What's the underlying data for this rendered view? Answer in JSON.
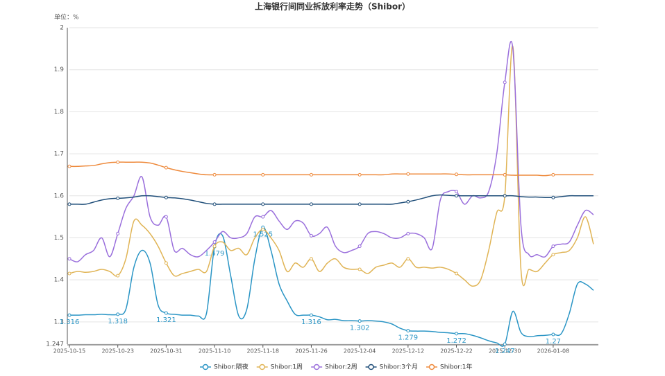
{
  "chart_data": {
    "type": "line",
    "title": "上海银行间同业拆放利率走势（Shibor）",
    "y_unit_label": "单位：%",
    "categories": [
      "2025-10-15",
      null,
      null,
      null,
      null,
      null,
      "2025-10-23",
      null,
      null,
      null,
      null,
      null,
      "2025-10-31",
      null,
      null,
      null,
      null,
      null,
      "2025-11-10",
      null,
      null,
      null,
      null,
      null,
      "2025-11-18",
      null,
      null,
      null,
      null,
      null,
      "2025-11-26",
      null,
      null,
      null,
      null,
      null,
      "2025-12-04",
      null,
      null,
      null,
      null,
      null,
      "2025-12-12",
      null,
      null,
      null,
      null,
      null,
      "2025-12-22",
      null,
      null,
      null,
      null,
      null,
      "2025-12-30",
      null,
      null,
      null,
      null,
      null,
      "2026-01-08",
      null,
      null,
      null,
      null,
      null
    ],
    "ylim": [
      1.247,
      2
    ],
    "yticks": [
      1.247,
      1.3,
      1.4,
      1.5,
      1.6,
      1.7,
      1.8,
      1.9,
      2
    ],
    "grid": true,
    "legend_position": "bottom",
    "series": [
      {
        "name": "Shibor:隔夜",
        "color": "#2a95c5",
        "values": [
          1.316,
          1.316,
          1.317,
          1.317,
          1.318,
          1.317,
          1.318,
          1.33,
          1.43,
          1.47,
          1.44,
          1.34,
          1.321,
          1.318,
          1.316,
          1.316,
          1.314,
          1.32,
          1.479,
          1.505,
          1.41,
          1.314,
          1.33,
          1.45,
          1.525,
          1.47,
          1.39,
          1.35,
          1.318,
          1.316,
          1.316,
          1.312,
          1.305,
          1.306,
          1.303,
          1.303,
          1.302,
          1.303,
          1.302,
          1.3,
          1.295,
          1.285,
          1.279,
          1.278,
          1.278,
          1.277,
          1.275,
          1.274,
          1.272,
          1.272,
          1.268,
          1.262,
          1.255,
          1.25,
          1.247,
          1.325,
          1.275,
          1.265,
          1.267,
          1.268,
          1.27,
          1.272,
          1.32,
          1.39,
          1.39,
          1.375
        ]
      },
      {
        "name": "Shibor:1周",
        "color": "#e0b455",
        "values": [
          1.415,
          1.42,
          1.418,
          1.42,
          1.425,
          1.42,
          1.41,
          1.45,
          1.54,
          1.53,
          1.51,
          1.48,
          1.44,
          1.41,
          1.415,
          1.42,
          1.425,
          1.42,
          1.48,
          1.49,
          1.47,
          1.475,
          1.46,
          1.5,
          1.52,
          1.5,
          1.47,
          1.42,
          1.44,
          1.43,
          1.45,
          1.42,
          1.44,
          1.45,
          1.43,
          1.425,
          1.425,
          1.415,
          1.43,
          1.435,
          1.44,
          1.43,
          1.45,
          1.43,
          1.43,
          1.428,
          1.43,
          1.425,
          1.415,
          1.4,
          1.385,
          1.4,
          1.47,
          1.56,
          1.6,
          1.955,
          1.425,
          1.425,
          1.42,
          1.44,
          1.46,
          1.465,
          1.47,
          1.5,
          1.55,
          1.485
        ]
      },
      {
        "name": "Shibor:2周",
        "color": "#9a6fdc",
        "values": [
          1.45,
          1.443,
          1.46,
          1.47,
          1.5,
          1.455,
          1.51,
          1.57,
          1.6,
          1.645,
          1.55,
          1.53,
          1.55,
          1.47,
          1.475,
          1.46,
          1.455,
          1.47,
          1.49,
          1.515,
          1.5,
          1.5,
          1.51,
          1.55,
          1.55,
          1.565,
          1.54,
          1.52,
          1.54,
          1.535,
          1.505,
          1.51,
          1.525,
          1.48,
          1.465,
          1.47,
          1.48,
          1.51,
          1.515,
          1.51,
          1.5,
          1.5,
          1.51,
          1.51,
          1.5,
          1.475,
          1.59,
          1.61,
          1.61,
          1.58,
          1.6,
          1.595,
          1.61,
          1.7,
          1.87,
          1.95,
          1.53,
          1.46,
          1.46,
          1.455,
          1.48,
          1.485,
          1.49,
          1.53,
          1.565,
          1.555
        ]
      },
      {
        "name": "Shibor:3个月",
        "color": "#1f4e79",
        "values": [
          1.58,
          1.58,
          1.58,
          1.585,
          1.59,
          1.593,
          1.594,
          1.595,
          1.597,
          1.6,
          1.6,
          1.598,
          1.596,
          1.595,
          1.593,
          1.59,
          1.586,
          1.582,
          1.58,
          1.58,
          1.58,
          1.58,
          1.58,
          1.58,
          1.58,
          1.58,
          1.58,
          1.58,
          1.58,
          1.58,
          1.58,
          1.58,
          1.58,
          1.58,
          1.58,
          1.58,
          1.58,
          1.58,
          1.58,
          1.58,
          1.58,
          1.583,
          1.586,
          1.59,
          1.595,
          1.6,
          1.602,
          1.601,
          1.6,
          1.6,
          1.6,
          1.6,
          1.6,
          1.6,
          1.6,
          1.6,
          1.598,
          1.597,
          1.597,
          1.596,
          1.596,
          1.598,
          1.6,
          1.6,
          1.6,
          1.6
        ]
      },
      {
        "name": "Shibor:1年",
        "color": "#ee8a3c",
        "values": [
          1.67,
          1.67,
          1.671,
          1.672,
          1.676,
          1.679,
          1.68,
          1.68,
          1.68,
          1.68,
          1.678,
          1.673,
          1.667,
          1.662,
          1.658,
          1.655,
          1.652,
          1.65,
          1.65,
          1.65,
          1.65,
          1.65,
          1.65,
          1.65,
          1.65,
          1.65,
          1.65,
          1.65,
          1.65,
          1.65,
          1.65,
          1.65,
          1.65,
          1.65,
          1.65,
          1.65,
          1.65,
          1.65,
          1.65,
          1.65,
          1.652,
          1.652,
          1.652,
          1.652,
          1.652,
          1.652,
          1.652,
          1.652,
          1.651,
          1.65,
          1.65,
          1.65,
          1.65,
          1.65,
          1.65,
          1.649,
          1.649,
          1.649,
          1.649,
          1.648,
          1.65,
          1.65,
          1.65,
          1.65,
          1.65,
          1.65
        ]
      }
    ]
  }
}
